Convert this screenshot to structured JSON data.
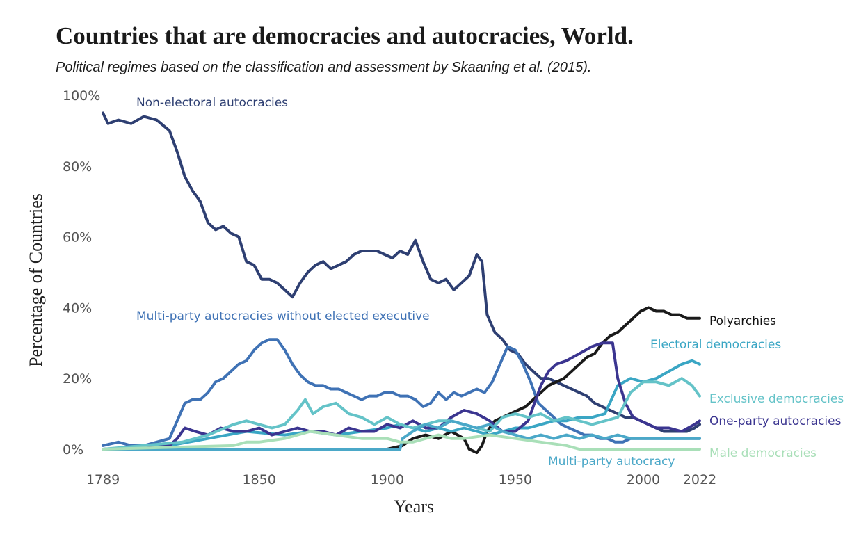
{
  "title": "Countries that are democracies and autocracies, World.",
  "subtitle": "Political regimes based on the classification and assessment by Skaaning et al. (2015).",
  "chart_data": {
    "type": "line",
    "xlabel": "Years",
    "ylabel": "Percentage of Countries",
    "xlim": [
      1789,
      2022
    ],
    "ylim": [
      0,
      100
    ],
    "x_ticks": [
      {
        "value": 1789,
        "label": "1789"
      },
      {
        "value": 1850,
        "label": "1850"
      },
      {
        "value": 1900,
        "label": "1900"
      },
      {
        "value": 1950,
        "label": "1950"
      },
      {
        "value": 2000,
        "label": "2000"
      },
      {
        "value": 2022,
        "label": "2022"
      }
    ],
    "y_ticks": [
      {
        "value": 0,
        "label": "0%"
      },
      {
        "value": 20,
        "label": "20%"
      },
      {
        "value": 40,
        "label": "40%"
      },
      {
        "value": 60,
        "label": "60%"
      },
      {
        "value": 80,
        "label": "80%"
      },
      {
        "value": 100,
        "label": "100%"
      }
    ],
    "grid": false,
    "legend": "none",
    "series": [
      {
        "name": "Non-electoral autocracies",
        "color": "#2e3f72",
        "label_anchor": "top-left",
        "x": [
          1789,
          1791,
          1795,
          1800,
          1805,
          1810,
          1815,
          1818,
          1821,
          1824,
          1827,
          1830,
          1833,
          1836,
          1839,
          1842,
          1845,
          1848,
          1851,
          1854,
          1857,
          1860,
          1863,
          1866,
          1869,
          1872,
          1875,
          1878,
          1881,
          1884,
          1887,
          1890,
          1893,
          1896,
          1899,
          1902,
          1905,
          1908,
          1911,
          1914,
          1917,
          1920,
          1923,
          1926,
          1929,
          1932,
          1935,
          1937,
          1939,
          1942,
          1945,
          1948,
          1951,
          1954,
          1957,
          1960,
          1963,
          1966,
          1969,
          1972,
          1975,
          1978,
          1981,
          1984,
          1987,
          1990,
          1993,
          1996,
          1999,
          2002,
          2005,
          2008,
          2011,
          2014,
          2017,
          2020,
          2022
        ],
        "y": [
          95,
          92,
          93,
          92,
          94,
          93,
          90,
          84,
          77,
          73,
          70,
          64,
          62,
          63,
          61,
          60,
          53,
          52,
          48,
          48,
          47,
          45,
          43,
          47,
          50,
          52,
          53,
          51,
          52,
          53,
          55,
          56,
          56,
          56,
          55,
          54,
          56,
          55,
          59,
          53,
          48,
          47,
          48,
          45,
          47,
          49,
          55,
          53,
          38,
          33,
          31,
          28,
          27,
          24,
          22,
          20,
          20,
          19,
          18,
          17,
          16,
          15,
          13,
          12,
          11,
          10,
          9,
          9,
          8,
          7,
          6,
          5,
          5,
          5,
          5,
          6,
          7
        ]
      },
      {
        "name": "Multi-party autocracies without elected executive",
        "color": "#3f72b5",
        "label_anchor": "top-left",
        "x": [
          1789,
          1795,
          1800,
          1805,
          1810,
          1815,
          1818,
          1821,
          1824,
          1827,
          1830,
          1833,
          1836,
          1839,
          1842,
          1845,
          1848,
          1851,
          1854,
          1857,
          1860,
          1863,
          1866,
          1869,
          1872,
          1875,
          1878,
          1881,
          1884,
          1887,
          1890,
          1893,
          1896,
          1899,
          1902,
          1905,
          1908,
          1911,
          1914,
          1917,
          1920,
          1923,
          1926,
          1929,
          1932,
          1935,
          1938,
          1941,
          1944,
          1947,
          1950,
          1953,
          1956,
          1959,
          1962,
          1965,
          1968,
          1971,
          1974,
          1977,
          1980,
          1983,
          1986,
          1989,
          1992,
          1995,
          1998,
          2001,
          2004,
          2007,
          2010,
          2013,
          2016,
          2019,
          2022
        ],
        "y": [
          1,
          2,
          1,
          1,
          2,
          3,
          8,
          13,
          14,
          14,
          16,
          19,
          20,
          22,
          24,
          25,
          28,
          30,
          31,
          31,
          28,
          24,
          21,
          19,
          18,
          18,
          17,
          17,
          16,
          15,
          14,
          15,
          15,
          16,
          16,
          15,
          15,
          14,
          12,
          13,
          16,
          14,
          16,
          15,
          16,
          17,
          16,
          19,
          24,
          29,
          28,
          24,
          19,
          13,
          11,
          9,
          7,
          6,
          5,
          4,
          4,
          3,
          3,
          2,
          2,
          3,
          3,
          3,
          3,
          3,
          3,
          3,
          3,
          3,
          3
        ]
      },
      {
        "name": "Polyarchies",
        "color": "#1a1a1a",
        "label_anchor": "line-end",
        "x": [
          1789,
          1900,
          1906,
          1908,
          1910,
          1915,
          1920,
          1925,
          1930,
          1932,
          1935,
          1937,
          1939,
          1942,
          1945,
          1948,
          1951,
          1954,
          1957,
          1960,
          1963,
          1966,
          1969,
          1972,
          1975,
          1978,
          1981,
          1984,
          1987,
          1990,
          1993,
          1996,
          1999,
          2002,
          2005,
          2008,
          2011,
          2014,
          2017,
          2020,
          2022
        ],
        "y": [
          0,
          0,
          1,
          2,
          3,
          4,
          3,
          5,
          3,
          0,
          -1,
          1,
          5,
          8,
          9,
          10,
          11,
          12,
          14,
          16,
          18,
          19,
          20,
          22,
          24,
          26,
          27,
          30,
          32,
          33,
          35,
          37,
          39,
          40,
          39,
          39,
          38,
          38,
          37,
          37,
          37
        ]
      },
      {
        "name": "Electoral democracies",
        "color": "#3aa6c4",
        "label_anchor": "above-end",
        "x": [
          1789,
          1815,
          1830,
          1845,
          1860,
          1870,
          1880,
          1890,
          1900,
          1905,
          1910,
          1915,
          1920,
          1925,
          1930,
          1935,
          1940,
          1945,
          1950,
          1955,
          1960,
          1965,
          1970,
          1975,
          1980,
          1985,
          1990,
          1995,
          2000,
          2005,
          2010,
          2015,
          2019,
          2022
        ],
        "y": [
          0,
          1,
          3,
          5,
          4,
          5,
          4,
          5,
          6,
          7,
          6,
          5,
          6,
          5,
          6,
          5,
          4,
          5,
          6,
          6,
          7,
          8,
          8,
          9,
          9,
          10,
          18,
          20,
          19,
          20,
          22,
          24,
          25,
          24
        ]
      },
      {
        "name": "One-party autocracies",
        "color": "#3b3590",
        "label_anchor": "line-end",
        "x": [
          1789,
          1815,
          1818,
          1821,
          1825,
          1830,
          1835,
          1840,
          1845,
          1850,
          1855,
          1860,
          1865,
          1870,
          1875,
          1880,
          1885,
          1890,
          1895,
          1900,
          1905,
          1910,
          1915,
          1920,
          1925,
          1930,
          1935,
          1940,
          1945,
          1950,
          1955,
          1958,
          1960,
          1963,
          1966,
          1970,
          1975,
          1980,
          1984,
          1986,
          1988,
          1990,
          1993,
          1996,
          1999,
          2002,
          2005,
          2010,
          2015,
          2020,
          2022
        ],
        "y": [
          0,
          1,
          3,
          6,
          5,
          4,
          6,
          5,
          5,
          6,
          4,
          5,
          6,
          5,
          5,
          4,
          6,
          5,
          5,
          7,
          6,
          8,
          6,
          6,
          9,
          11,
          10,
          8,
          5,
          5,
          8,
          14,
          18,
          22,
          24,
          25,
          27,
          29,
          30,
          30,
          30,
          20,
          13,
          9,
          8,
          7,
          6,
          6,
          5,
          7,
          8
        ]
      },
      {
        "name": "Exclusive democracies",
        "color": "#64c3c8",
        "label_anchor": "line-end",
        "x": [
          1789,
          1820,
          1830,
          1840,
          1845,
          1850,
          1855,
          1860,
          1865,
          1868,
          1871,
          1875,
          1880,
          1885,
          1890,
          1895,
          1900,
          1905,
          1910,
          1915,
          1920,
          1925,
          1930,
          1935,
          1940,
          1945,
          1950,
          1955,
          1960,
          1965,
          1970,
          1975,
          1980,
          1985,
          1990,
          1995,
          2000,
          2005,
          2010,
          2015,
          2019,
          2022
        ],
        "y": [
          0,
          2,
          4,
          7,
          8,
          7,
          6,
          7,
          11,
          14,
          10,
          12,
          13,
          10,
          9,
          7,
          9,
          7,
          6,
          7,
          8,
          8,
          7,
          6,
          5,
          9,
          10,
          9,
          10,
          8,
          9,
          8,
          7,
          8,
          9,
          16,
          19,
          19,
          18,
          20,
          18,
          15
        ]
      },
      {
        "name": "Multi-party autocracy",
        "color": "#4ba8c8",
        "label_anchor": "below-line",
        "x": [
          1789,
          1905,
          1906,
          1908,
          1910,
          1915,
          1920,
          1925,
          1930,
          1935,
          1940,
          1945,
          1950,
          1955,
          1960,
          1965,
          1970,
          1975,
          1980,
          1985,
          1990,
          1995,
          2000,
          2005,
          2010,
          2015,
          2020,
          2022
        ],
        "y": [
          0,
          0,
          3,
          4,
          5,
          7,
          6,
          8,
          7,
          6,
          7,
          5,
          4,
          3,
          4,
          3,
          4,
          3,
          4,
          3,
          4,
          3,
          3,
          3,
          3,
          3,
          3,
          3
        ]
      },
      {
        "name": "Male democracies",
        "color": "#a9dfb8",
        "label_anchor": "line-end",
        "x": [
          1789,
          1840,
          1845,
          1850,
          1860,
          1870,
          1880,
          1890,
          1900,
          1905,
          1910,
          1915,
          1920,
          1925,
          1930,
          1940,
          1950,
          1960,
          1970,
          1975,
          1980,
          1985,
          1990,
          2000,
          2010,
          2022
        ],
        "y": [
          0,
          1,
          2,
          2,
          3,
          5,
          4,
          3,
          3,
          2,
          2,
          3,
          4,
          3,
          3,
          4,
          3,
          2,
          1,
          0,
          0,
          0,
          0,
          0,
          0,
          0
        ]
      }
    ]
  }
}
